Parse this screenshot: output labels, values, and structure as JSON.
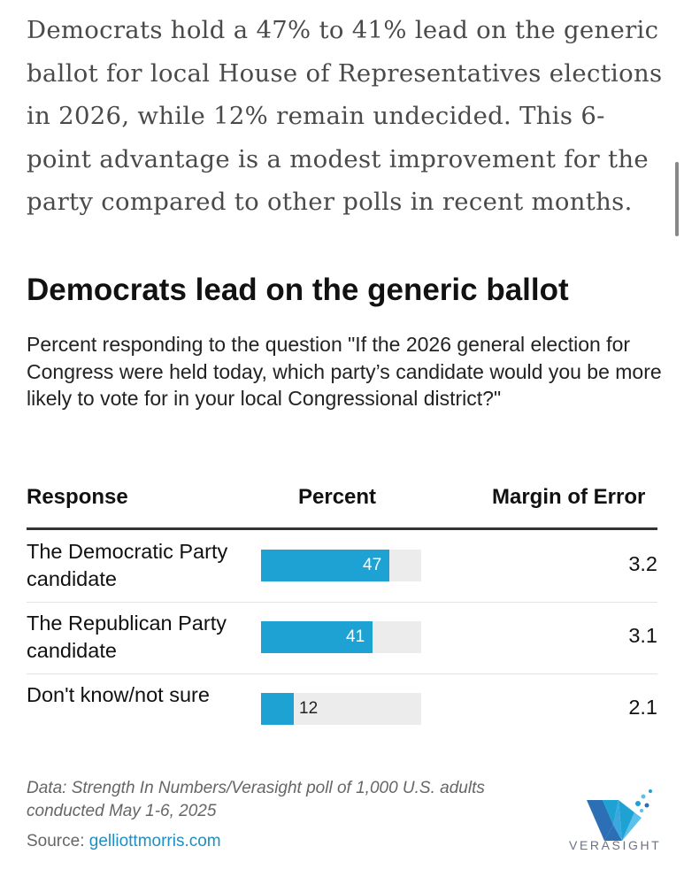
{
  "article": {
    "intro": "Democrats hold a 47% to 41% lead on the generic ballot for local House of Representatives elections in 2026, while 12% remain undecided. This 6-point advantage is a modest improvement for the party compared to other polls in recent months."
  },
  "chart": {
    "title": "Democrats lead on the generic ballot",
    "subtitle": "Percent responding to the question \"If the 2026 general election for Congress were held today, which party’s candidate would you be more likely to vote for in your local Congressional district?\"",
    "headers": {
      "response": "Response",
      "percent": "Percent",
      "moe": "Margin of Error"
    },
    "footnote": "Data: Strength In Numbers/Verasight poll of 1,000 U.S. adults conducted May 1-6, 2025",
    "source_label": "Source:",
    "source_link": "gelliottmorris.com",
    "logo_text": "VERASIGHT",
    "colors": {
      "bar": "#1ea2d4",
      "track": "#ececec",
      "link": "#1d8fc4"
    }
  },
  "chart_data": {
    "type": "table",
    "title": "Democrats lead on the generic ballot",
    "columns": [
      "Response",
      "Percent",
      "Margin of Error"
    ],
    "rows": [
      {
        "response": "The Democratic Party candidate",
        "percent": 47,
        "moe": "3.2"
      },
      {
        "response": "The Republican Party candidate",
        "percent": 41,
        "moe": "3.1"
      },
      {
        "response": "Don't know/not sure",
        "percent": 12,
        "moe": "2.1"
      }
    ],
    "xlim": [
      0,
      100
    ]
  }
}
